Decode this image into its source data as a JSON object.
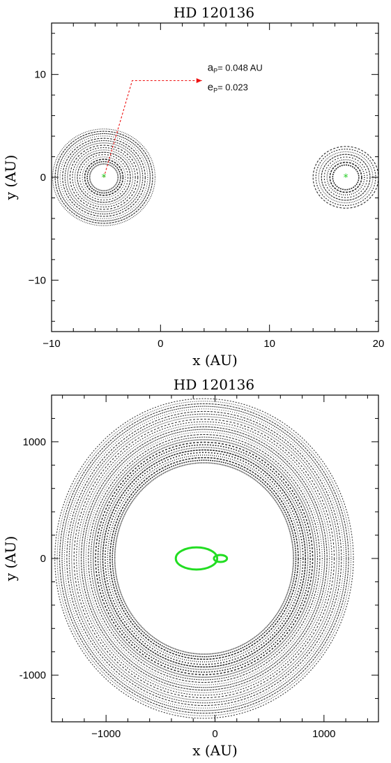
{
  "chart_data": [
    {
      "type": "scatter",
      "title": "HD 120136",
      "xlabel": "x (AU)",
      "ylabel": "y (AU)",
      "xlim": [
        -10,
        20
      ],
      "ylim": [
        -15,
        15
      ],
      "xticks": [
        -10,
        0,
        10,
        20
      ],
      "yticks": [
        -10,
        0,
        10
      ],
      "xtick_labels": [
        "−10",
        "0",
        "10",
        "20"
      ],
      "ytick_labels": [
        "−10",
        "0",
        "10"
      ],
      "stars": [
        {
          "x": -5.2,
          "y": 0,
          "color": "#22cc22"
        },
        {
          "x": 17.0,
          "y": 0,
          "color": "#22cc22"
        }
      ],
      "ring_clusters": [
        {
          "cx": -5.2,
          "cy": 0,
          "r_min": 1.3,
          "r_max": 4.7,
          "n_rings": 16
        },
        {
          "cx": 17.0,
          "cy": 0,
          "r_min": 1.2,
          "r_max": 3.0,
          "n_rings": 8
        }
      ],
      "annotation": {
        "line1_sym": "a",
        "line1_sub": "P",
        "line1_val": "= 0.048 AU",
        "line2_sym": "e",
        "line2_sub": "P",
        "line2_val": "= 0.023",
        "arrow_from": [
          -5.2,
          0
        ],
        "arrow_corner": [
          -2.6,
          9.4
        ],
        "arrow_to": [
          3.8,
          9.4
        ],
        "color": "#ee1111"
      }
    },
    {
      "type": "scatter",
      "title": "HD 120136",
      "xlabel": "x (AU)",
      "ylabel": "y (AU)",
      "xlim": [
        -1500,
        1500
      ],
      "ylim": [
        -1400,
        1400
      ],
      "xticks": [
        -1000,
        0,
        1000
      ],
      "yticks": [
        -1000,
        0,
        1000
      ],
      "xtick_labels": [
        "−1000",
        "0",
        "1000"
      ],
      "ytick_labels": [
        "-1000",
        "0",
        "1000"
      ],
      "disk": {
        "cx": -100,
        "cy": 0,
        "r_min": 820,
        "r_max": 1370,
        "n_rings": 26
      },
      "orbits": [
        {
          "cx": -170,
          "cy": 0,
          "rx": 190,
          "ry": 95,
          "color": "#22dd22"
        },
        {
          "cx": 50,
          "cy": 0,
          "rx": 60,
          "ry": 30,
          "color": "#22dd22"
        }
      ]
    }
  ]
}
